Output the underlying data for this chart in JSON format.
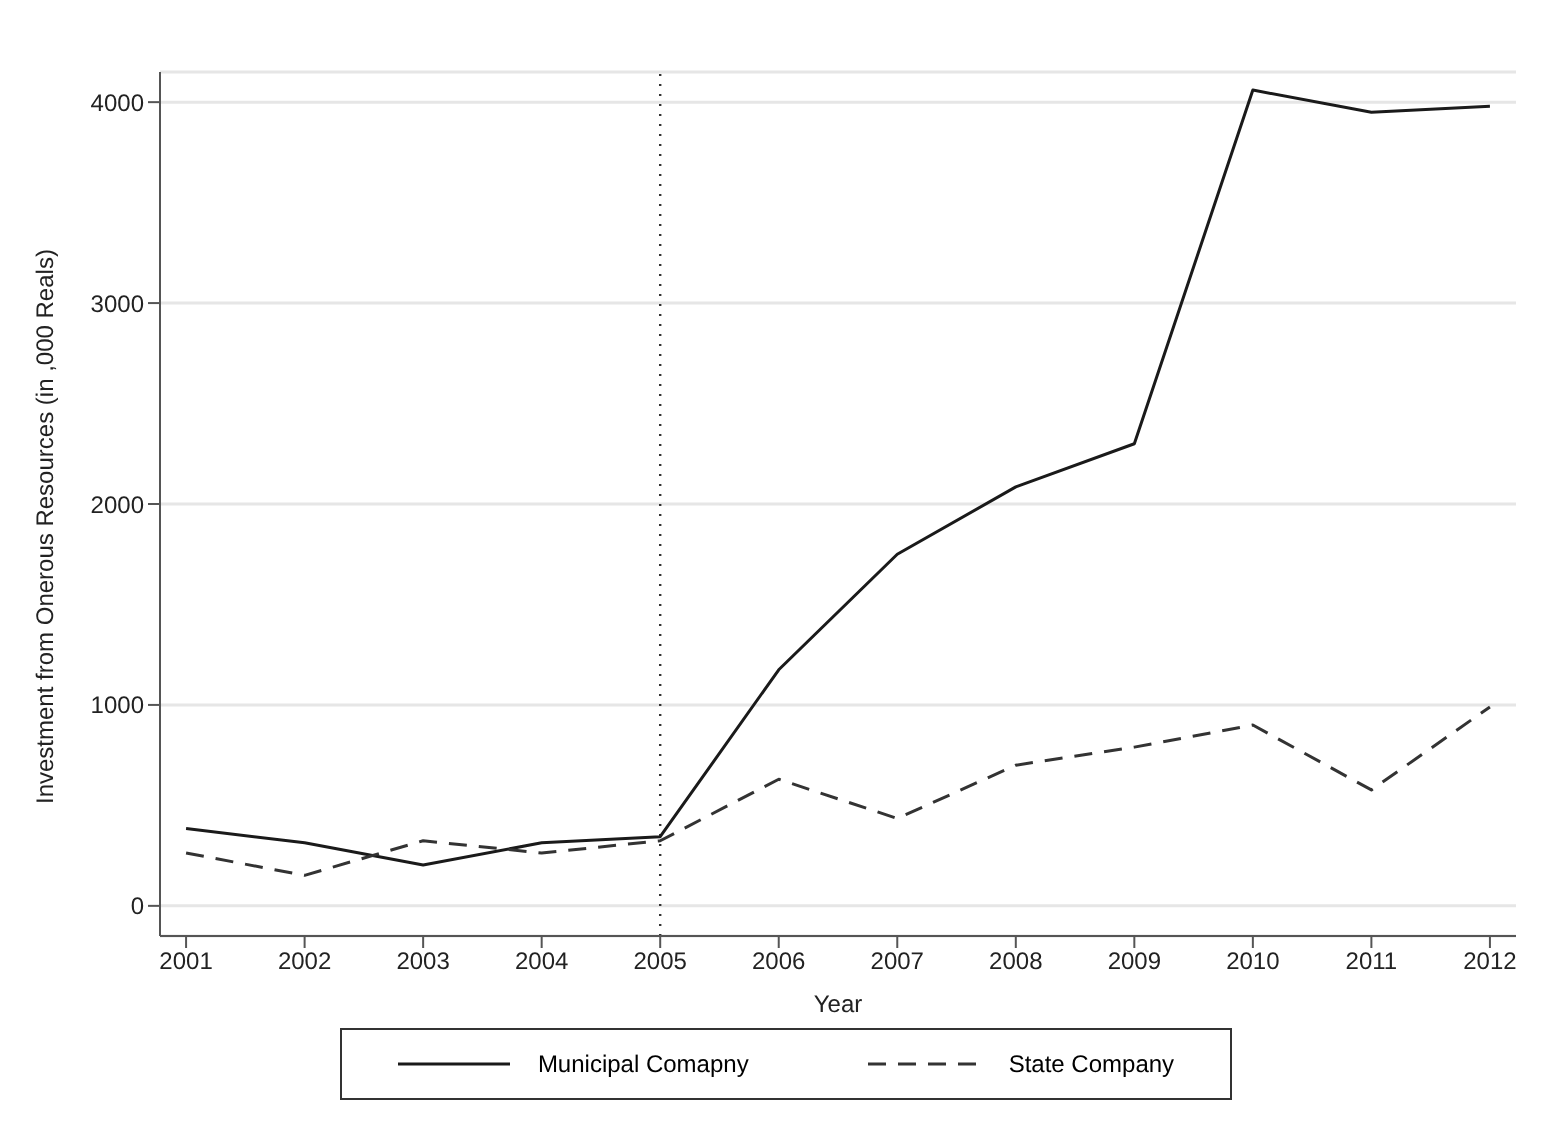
{
  "chart_data": {
    "type": "line",
    "xlabel": "Year",
    "ylabel": "Investment from Onerous Resources (in ,000 Reals)",
    "x": [
      2001,
      2002,
      2003,
      2004,
      2005,
      2006,
      2007,
      2008,
      2009,
      2010,
      2011,
      2012
    ],
    "series": [
      {
        "name": "Municipal Comapny",
        "color": "#1a1a1a",
        "line_style": "solid",
        "values": [
          385,
          314,
          203,
          314,
          344,
          1175,
          1750,
          2085,
          2300,
          4060,
          3950,
          3980
        ]
      },
      {
        "name": "State Company",
        "color": "#333333",
        "line_style": "dashed",
        "values": [
          263,
          152,
          324,
          263,
          324,
          630,
          435,
          700,
          790,
          900,
          577,
          990
        ]
      }
    ],
    "xlim": [
      2000.78,
      2012.22
    ],
    "xticks": [
      2001,
      2002,
      2003,
      2004,
      2005,
      2006,
      2007,
      2008,
      2009,
      2010,
      2011,
      2012
    ],
    "ylim": [
      -150,
      4150
    ],
    "yticks": [
      0,
      1000,
      2000,
      3000,
      4000
    ],
    "grid": "y",
    "legend": "bottom",
    "marker": "none",
    "ref_lines": [
      {
        "axis": "x",
        "value": 2005,
        "color": "#333333",
        "line_style": "dotted"
      }
    ]
  }
}
